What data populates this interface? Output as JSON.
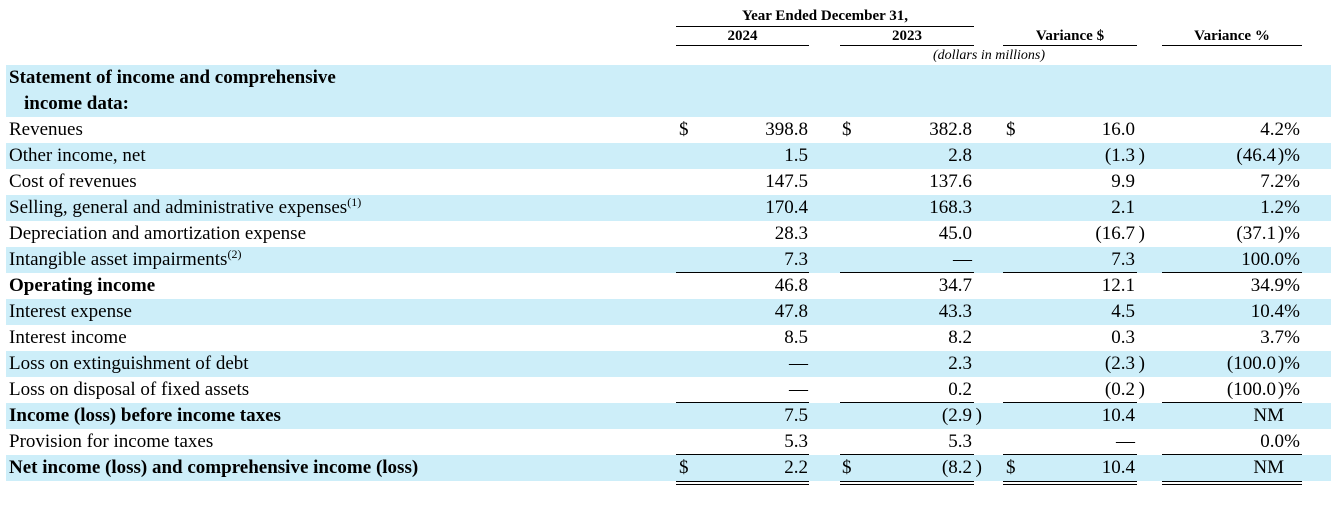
{
  "header": {
    "period": "Year Ended December 31,",
    "col_2024": "2024",
    "col_2023": "2023",
    "col_var_usd": "Variance $",
    "col_var_pct": "Variance %",
    "units": "(dollars in millions)"
  },
  "section": {
    "line1": "Statement of income and comprehensive",
    "line2": "income data:"
  },
  "rows": [
    {
      "label": "Revenues",
      "sup": "",
      "v2024": "398.8",
      "v2023": "382.8",
      "var": "16.0",
      "pct": "4.2",
      "pct_sfx": "%"
    },
    {
      "label": "Other income, net",
      "sup": "",
      "v2024": "1.5",
      "v2023": "2.8",
      "var": "(1.3",
      "var_sfx": ")",
      "pct": "(46.4",
      "pct_sfx": ")%"
    },
    {
      "label": "Cost of revenues",
      "sup": "",
      "v2024": "147.5",
      "v2023": "137.6",
      "var": "9.9",
      "pct": "7.2",
      "pct_sfx": "%"
    },
    {
      "label": "Selling, general and administrative expenses",
      "sup": "(1)",
      "v2024": "170.4",
      "v2023": "168.3",
      "var": "2.1",
      "pct": "1.2",
      "pct_sfx": "%"
    },
    {
      "label": "Depreciation and amortization expense",
      "sup": "",
      "v2024": "28.3",
      "v2023": "45.0",
      "var": "(16.7",
      "var_sfx": ")",
      "pct": "(37.1",
      "pct_sfx": ")%"
    },
    {
      "label": "Intangible asset impairments",
      "sup": "(2)",
      "v2024": "7.3",
      "v2023": "—",
      "var": "7.3",
      "pct": "100.0",
      "pct_sfx": "%"
    },
    {
      "label": "Operating income",
      "sup": "",
      "v2024": "46.8",
      "v2023": "34.7",
      "var": "12.1",
      "pct": "34.9",
      "pct_sfx": "%"
    },
    {
      "label": "Interest expense",
      "sup": "",
      "v2024": "47.8",
      "v2023": "43.3",
      "var": "4.5",
      "pct": "10.4",
      "pct_sfx": "%"
    },
    {
      "label": "Interest income",
      "sup": "",
      "v2024": "8.5",
      "v2023": "8.2",
      "var": "0.3",
      "pct": "3.7",
      "pct_sfx": "%"
    },
    {
      "label": "Loss on extinguishment of debt",
      "sup": "",
      "v2024": "—",
      "v2023": "2.3",
      "var": "(2.3",
      "var_sfx": ")",
      "pct": "(100.0",
      "pct_sfx": ")%"
    },
    {
      "label": "Loss on disposal of fixed assets",
      "sup": "",
      "v2024": "—",
      "v2023": "0.2",
      "var": "(0.2",
      "var_sfx": ")",
      "pct": "(100.0",
      "pct_sfx": ")%"
    },
    {
      "label": "Income (loss) before income taxes",
      "sup": "",
      "v2024": "7.5",
      "v2023": "(2.9",
      "v2023_sfx": ")",
      "var": "10.4",
      "pct": "NM",
      "pct_sfx": ""
    },
    {
      "label": "Provision for income taxes",
      "sup": "",
      "v2024": "5.3",
      "v2023": "5.3",
      "var": "—",
      "pct": "0.0",
      "pct_sfx": "%"
    },
    {
      "label": "Net income (loss) and comprehensive income (loss)",
      "sup": "",
      "v2024": "2.2",
      "v2023": "(8.2",
      "v2023_sfx": ")",
      "var": "10.4",
      "pct": "NM",
      "pct_sfx": ""
    }
  ],
  "currency_symbol": "$",
  "shade_color": "#cdeef9"
}
